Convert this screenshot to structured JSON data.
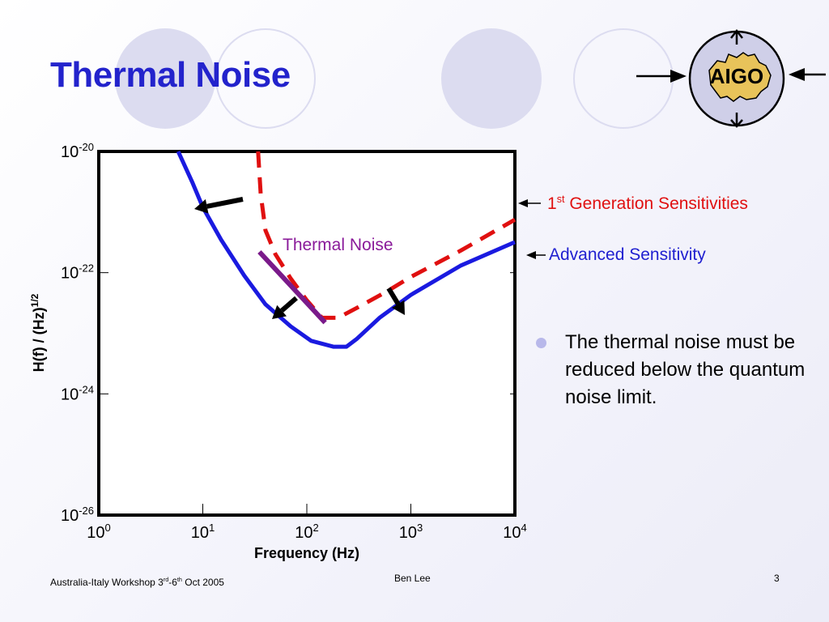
{
  "slide": {
    "title": "Thermal Noise",
    "bullet": "The thermal noise must be reduced below the quantum noise limit.",
    "footer_left_main": "Australia-Italy Workshop 3",
    "footer_left_sup1": "rd",
    "footer_left_mid": "-6",
    "footer_left_sup2": "th",
    "footer_left_end": " Oct 2005",
    "footer_center": "Ben Lee",
    "footer_right": "3"
  },
  "logo": {
    "text": "AIGO"
  },
  "colors": {
    "title": "#2323cc",
    "first_generation": "#e01010",
    "advanced": "#1a1ae0",
    "thermal": "#7a1a8a"
  },
  "annotations": {
    "first_gen_pre": "1",
    "first_gen_sup": "st",
    "first_gen_post": " Generation Sensitivities",
    "advanced": "Advanced Sensitivity",
    "thermal": "Thermal Noise"
  },
  "chart_data": {
    "type": "line",
    "xlabel": "Frequency (Hz)",
    "ylabel": "H(f) / (Hz)",
    "ylabel_sup": "1/2",
    "x_scale": "log",
    "y_scale": "log",
    "xlim": [
      1,
      10000
    ],
    "ylim": [
      1e-26,
      1e-20
    ],
    "x_ticks": [
      {
        "base": "10",
        "exp": "0",
        "value": 1
      },
      {
        "base": "10",
        "exp": "1",
        "value": 10
      },
      {
        "base": "10",
        "exp": "2",
        "value": 100
      },
      {
        "base": "10",
        "exp": "3",
        "value": 1000
      },
      {
        "base": "10",
        "exp": "4",
        "value": 10000
      }
    ],
    "y_ticks": [
      {
        "base": "10",
        "exp": "-20",
        "value": 1e-20
      },
      {
        "base": "10",
        "exp": "-22",
        "value": 1e-22
      },
      {
        "base": "10",
        "exp": "-24",
        "value": 1e-24
      },
      {
        "base": "10",
        "exp": "-26",
        "value": 1e-26
      }
    ],
    "grid": false,
    "series": [
      {
        "name": "Advanced Sensitivity",
        "style": "solid",
        "x": [
          5.8,
          8,
          10,
          15,
          25,
          40,
          70,
          110,
          180,
          240,
          300,
          500,
          1000,
          3000,
          10000
        ],
        "y": [
          1e-20,
          3e-21,
          1.2e-21,
          3.5e-22,
          9e-23,
          3e-23,
          1.3e-23,
          7.5e-24,
          6e-24,
          6e-24,
          8e-24,
          1.8e-23,
          4.3e-23,
          1.3e-22,
          3.2e-22
        ]
      },
      {
        "name": "1st Generation Sensitivities",
        "style": "dashed",
        "x": [
          34,
          36,
          40,
          50,
          70,
          100,
          140,
          200,
          300,
          600,
          1000,
          3000,
          10000
        ],
        "y": [
          1e-20,
          2e-21,
          5e-22,
          2e-22,
          8e-23,
          3.5e-23,
          1.8e-23,
          1.8e-23,
          2.6e-23,
          5e-23,
          8.5e-23,
          2.3e-22,
          7.5e-22
        ]
      },
      {
        "name": "Thermal Noise",
        "style": "solid",
        "x": [
          35,
          150
        ],
        "y": [
          2.2e-22,
          1.5e-23
        ]
      }
    ]
  }
}
